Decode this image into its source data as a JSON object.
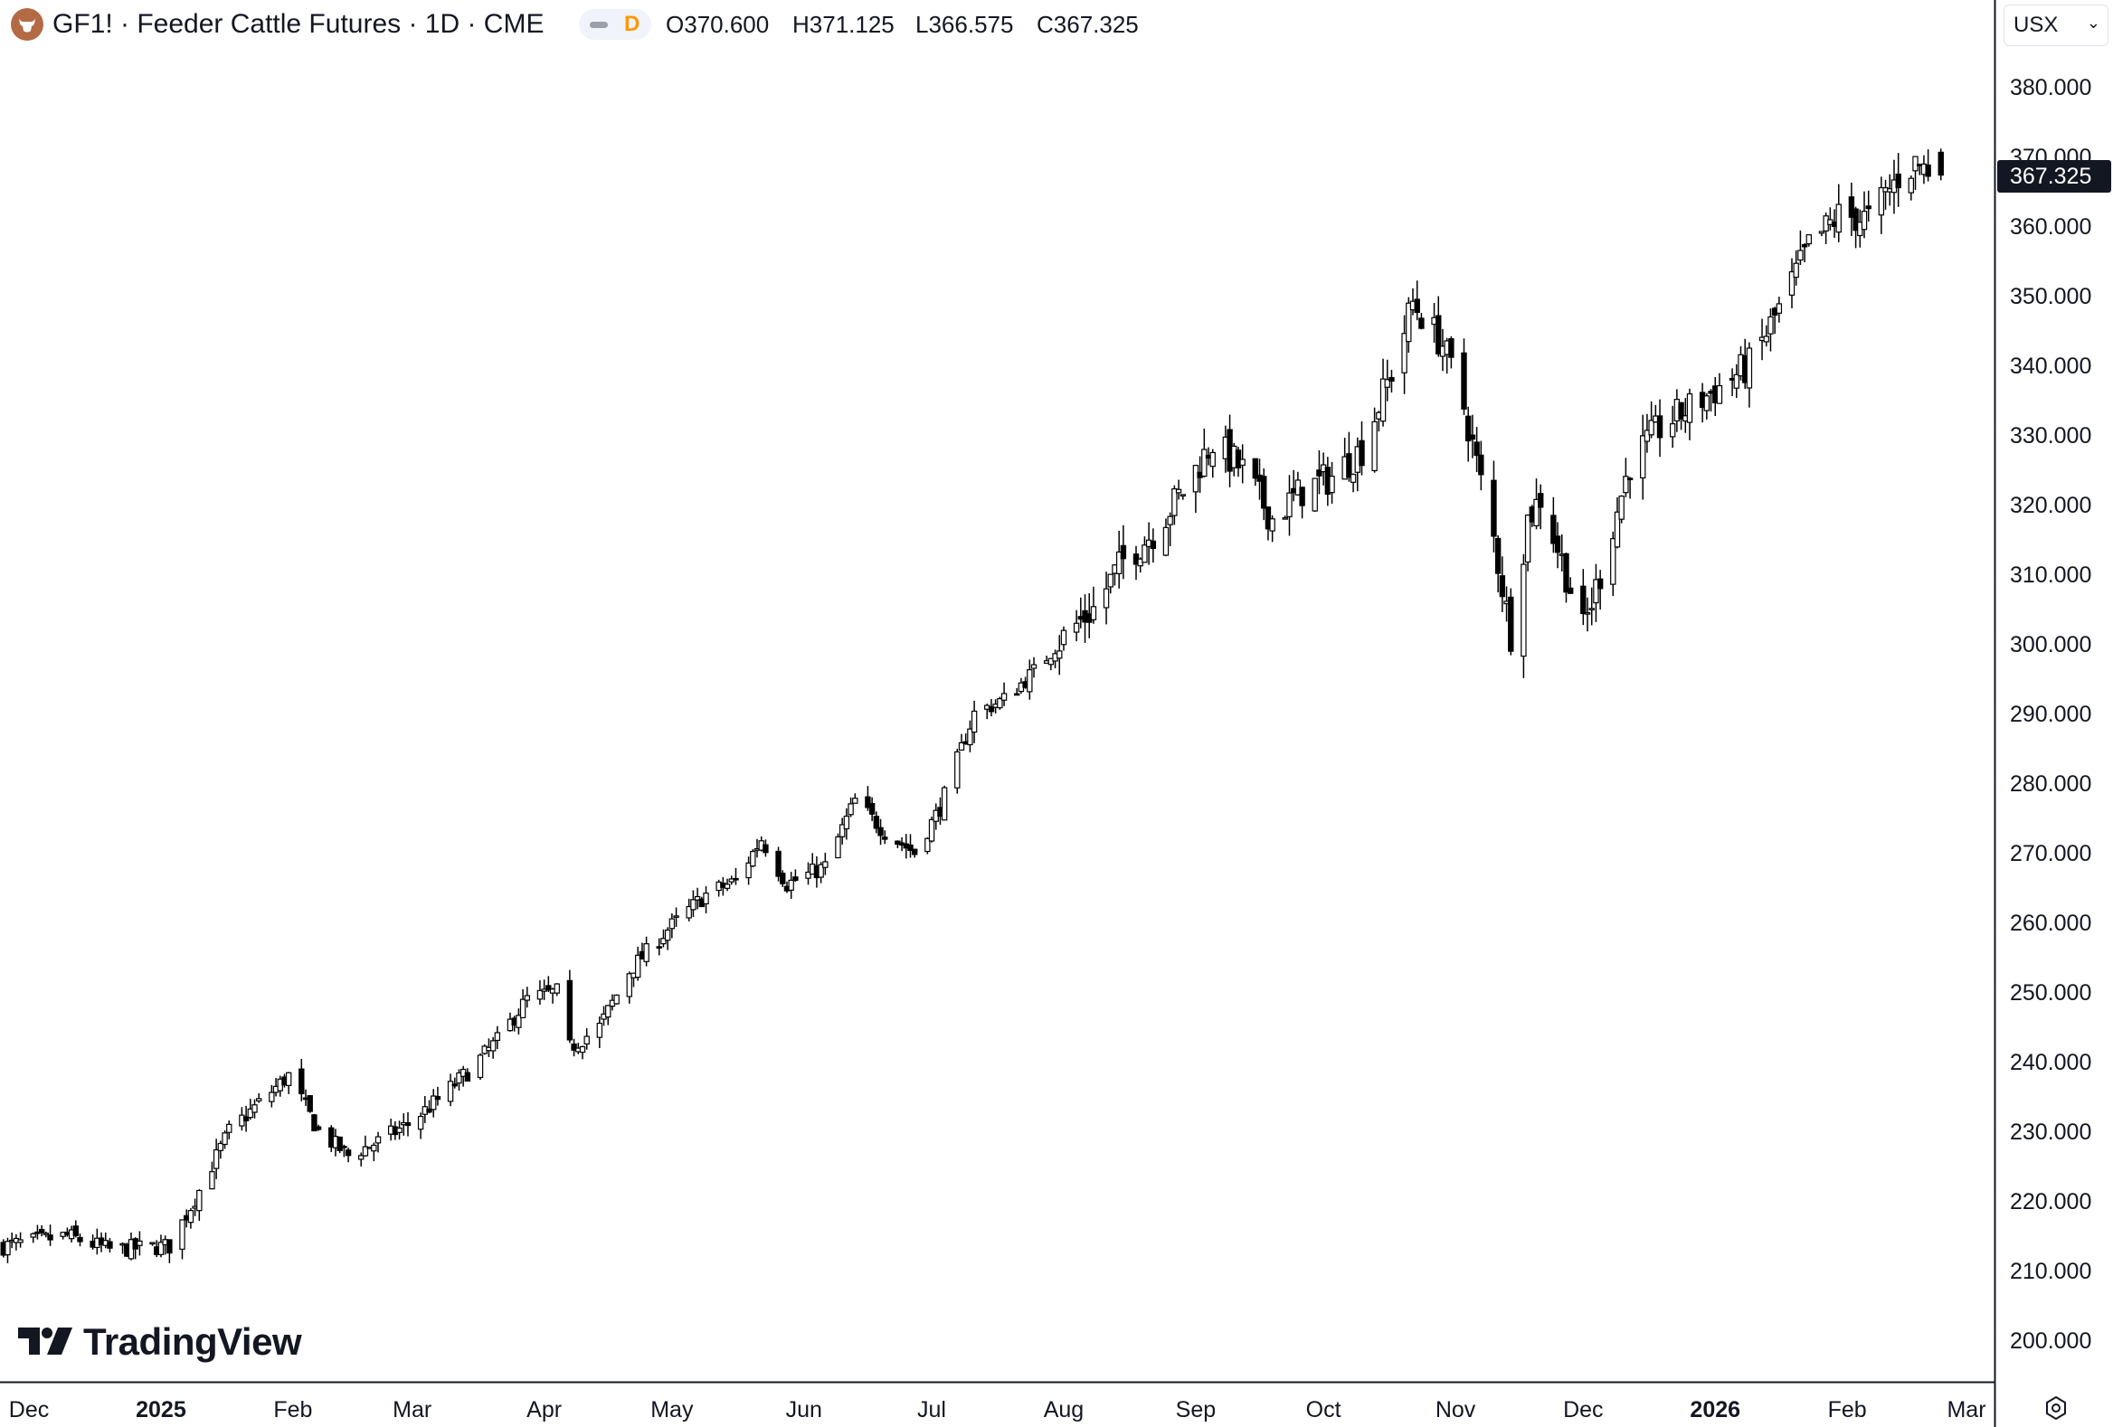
{
  "header": {
    "title": "GF1! · Feeder Cattle Futures · 1D · CME",
    "interval_badge": "D",
    "ohlc": [
      {
        "key": "O",
        "value": "370.600"
      },
      {
        "key": "H",
        "value": "371.125"
      },
      {
        "key": "L",
        "value": "366.575"
      },
      {
        "key": "C",
        "value": "367.325"
      }
    ]
  },
  "currency_selector": {
    "value": "USX"
  },
  "last_price_label": "367.325",
  "watermark": "TradingView",
  "colors": {
    "up_candle_fill": "#ffffff",
    "down_candle_fill": "#000000",
    "candle_outline": "#000000",
    "brand_logo": "#b36a45",
    "badge_orange": "#ff9800"
  },
  "icons": {
    "symbol_logo": "bull-icon",
    "interval_badge": "dash-icon",
    "currency": "chevron-down-icon",
    "settings": "settings-icon"
  },
  "chart_data": {
    "type": "candlestick",
    "symbol": "GF1!",
    "ylim": [
      195,
      390
    ],
    "yticks": [
      "380.000",
      "370.000",
      "360.000",
      "350.000",
      "340.000",
      "330.000",
      "320.000",
      "310.000",
      "300.000",
      "290.000",
      "280.000",
      "270.000",
      "260.000",
      "250.000",
      "240.000",
      "230.000",
      "220.000",
      "210.000",
      "200.000"
    ],
    "ytick_values": [
      380,
      370,
      360,
      350,
      340,
      330,
      320,
      310,
      300,
      290,
      280,
      270,
      260,
      250,
      240,
      230,
      220,
      210,
      200
    ],
    "xticks": [
      {
        "label": "Dec",
        "bold": false,
        "date": "2024-12-01"
      },
      {
        "label": "2025",
        "bold": true,
        "date": "2025-01-01"
      },
      {
        "label": "Feb",
        "bold": false,
        "date": "2025-02-01"
      },
      {
        "label": "Mar",
        "bold": false,
        "date": "2025-03-01"
      },
      {
        "label": "Apr",
        "bold": false,
        "date": "2025-04-01"
      },
      {
        "label": "May",
        "bold": false,
        "date": "2025-05-01"
      },
      {
        "label": "Jun",
        "bold": false,
        "date": "2025-06-01"
      },
      {
        "label": "Jul",
        "bold": false,
        "date": "2025-07-01"
      },
      {
        "label": "Aug",
        "bold": false,
        "date": "2025-08-01"
      },
      {
        "label": "Sep",
        "bold": false,
        "date": "2025-09-01"
      },
      {
        "label": "Oct",
        "bold": false,
        "date": "2025-10-01"
      },
      {
        "label": "Nov",
        "bold": false,
        "date": "2025-11-01"
      },
      {
        "label": "Dec",
        "bold": false,
        "date": "2025-12-01"
      },
      {
        "label": "2026",
        "bold": true,
        "date": "2026-01-01"
      },
      {
        "label": "Feb",
        "bold": false,
        "date": "2026-02-01"
      },
      {
        "label": "Mar",
        "bold": false,
        "date": "2026-03-01"
      }
    ],
    "close_anchors": [
      [
        "2024-11-25",
        213.5
      ],
      [
        "2024-12-10",
        215.0
      ],
      [
        "2024-12-20",
        213.0
      ],
      [
        "2025-01-03",
        213.5
      ],
      [
        "2025-01-10",
        221.5
      ],
      [
        "2025-01-17",
        230.0
      ],
      [
        "2025-01-31",
        238.0
      ],
      [
        "2025-02-07",
        230.0
      ],
      [
        "2025-02-14",
        226.5
      ],
      [
        "2025-02-21",
        228.5
      ],
      [
        "2025-02-28",
        231.0
      ],
      [
        "2025-03-07",
        234.5
      ],
      [
        "2025-03-14",
        238.5
      ],
      [
        "2025-03-21",
        243.0
      ],
      [
        "2025-03-28",
        249.0
      ],
      [
        "2025-04-04",
        250.0
      ],
      [
        "2025-04-07",
        242.0
      ],
      [
        "2025-04-14",
        245.0
      ],
      [
        "2025-04-21",
        253.0
      ],
      [
        "2025-04-30",
        259.0
      ],
      [
        "2025-05-09",
        264.0
      ],
      [
        "2025-05-16",
        266.0
      ],
      [
        "2025-05-22",
        272.0
      ],
      [
        "2025-05-28",
        265.5
      ],
      [
        "2025-06-06",
        268.0
      ],
      [
        "2025-06-13",
        277.5
      ],
      [
        "2025-06-20",
        273.0
      ],
      [
        "2025-06-27",
        270.0
      ],
      [
        "2025-07-03",
        276.5
      ],
      [
        "2025-07-11",
        290.0
      ],
      [
        "2025-07-18",
        292.0
      ],
      [
        "2025-07-25",
        296.0
      ],
      [
        "2025-08-01",
        301.0
      ],
      [
        "2025-08-08",
        305.0
      ],
      [
        "2025-08-15",
        312.0
      ],
      [
        "2025-08-22",
        316.0
      ],
      [
        "2025-08-29",
        322.0
      ],
      [
        "2025-09-05",
        329.0
      ],
      [
        "2025-09-12",
        325.0
      ],
      [
        "2025-09-19",
        318.0
      ],
      [
        "2025-09-26",
        322.0
      ],
      [
        "2025-10-03",
        324.0
      ],
      [
        "2025-10-10",
        328.0
      ],
      [
        "2025-10-17",
        339.0
      ],
      [
        "2025-10-22",
        349.0
      ],
      [
        "2025-10-29",
        343.0
      ],
      [
        "2025-11-03",
        334.0
      ],
      [
        "2025-11-10",
        315.0
      ],
      [
        "2025-11-14",
        301.5
      ],
      [
        "2025-11-18",
        318.0
      ],
      [
        "2025-11-21",
        321.0
      ],
      [
        "2025-11-26",
        312.0
      ],
      [
        "2025-12-01",
        302.0
      ],
      [
        "2025-12-05",
        310.0
      ],
      [
        "2025-12-12",
        326.0
      ],
      [
        "2025-12-19",
        331.0
      ],
      [
        "2025-12-31",
        336.0
      ],
      [
        "2026-01-09",
        340.0
      ],
      [
        "2026-01-16",
        348.0
      ],
      [
        "2026-01-23",
        357.0
      ],
      [
        "2026-01-30",
        361.5
      ],
      [
        "2026-02-06",
        361.0
      ],
      [
        "2026-02-13",
        367.0
      ],
      [
        "2026-02-17",
        369.0
      ],
      [
        "2026-02-23",
        367.325
      ]
    ]
  }
}
